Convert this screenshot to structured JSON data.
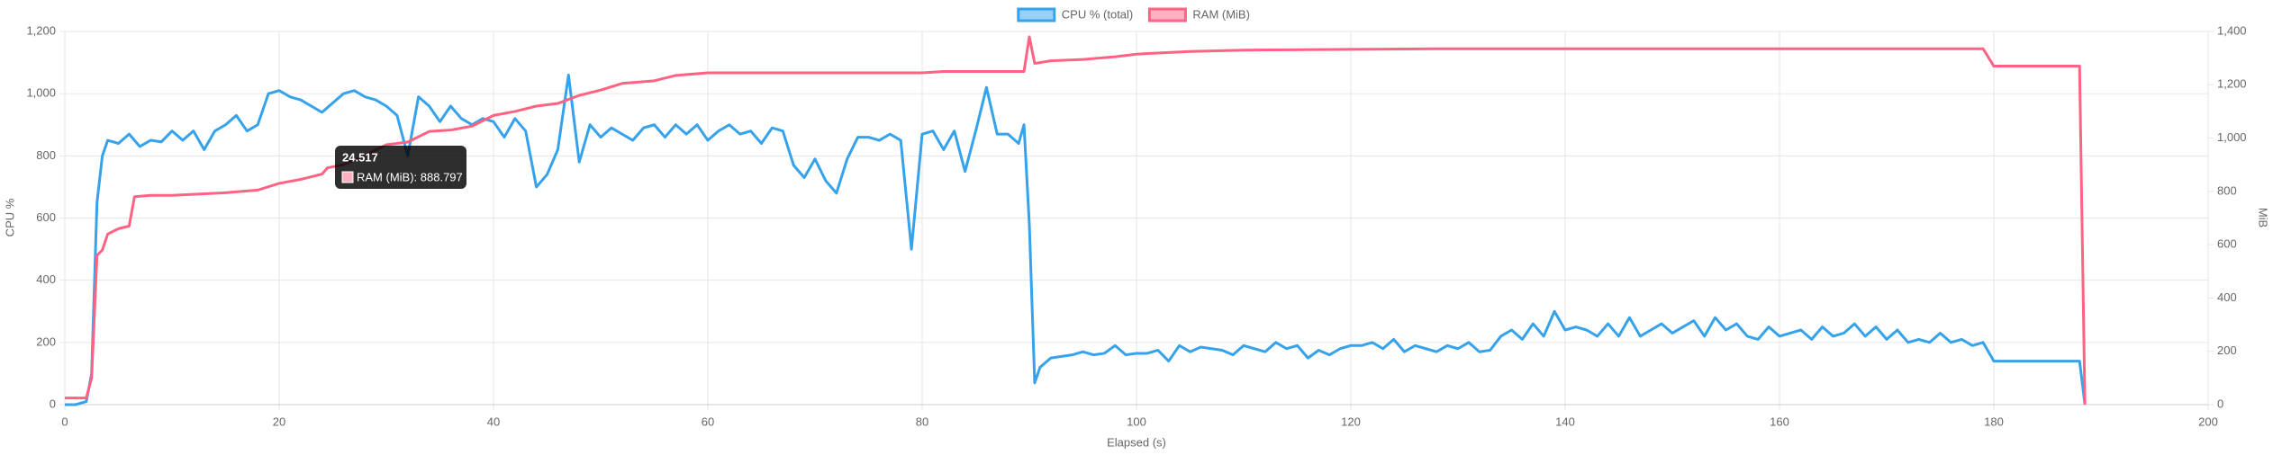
{
  "chart_data": {
    "type": "line",
    "x_label": "Elapsed (s)",
    "y_label": "CPU %",
    "y2_label": "MiB",
    "legend": "top",
    "grid": true,
    "xlim": [
      0,
      200
    ],
    "xticks": [
      0,
      20,
      40,
      60,
      80,
      100,
      120,
      140,
      160,
      180,
      200
    ],
    "ylim": [
      0,
      1200
    ],
    "yticks": [
      0,
      200,
      400,
      600,
      800,
      {
        "value": 1000,
        "label": "1,000"
      },
      {
        "value": 1200,
        "label": "1,200"
      }
    ],
    "y2lim": [
      0,
      1400
    ],
    "y2ticks": [
      0,
      200,
      400,
      600,
      800,
      {
        "value": 1000,
        "label": "1,000"
      },
      {
        "value": 1200,
        "label": "1,200"
      },
      {
        "value": 1400,
        "label": "1,400"
      }
    ],
    "tooltip": {
      "title": "24.517",
      "label": "RAM (MiB): 888.797"
    },
    "series": [
      {
        "name": "CPU % (total)",
        "color": "#36a2eb",
        "fill": "#9ad0f5",
        "x": [
          0,
          1,
          2,
          2.5,
          3,
          3.5,
          4,
          5,
          6,
          7,
          8,
          9,
          10,
          11,
          12,
          13,
          14,
          15,
          16,
          17,
          18,
          19,
          20,
          21,
          22,
          23,
          24,
          25,
          26,
          27,
          28,
          29,
          30,
          31,
          32,
          33,
          34,
          35,
          36,
          37,
          38,
          39,
          40,
          41,
          42,
          43,
          44,
          45,
          46,
          47,
          48,
          49,
          50,
          51,
          52,
          53,
          54,
          55,
          56,
          57,
          58,
          59,
          60,
          61,
          62,
          63,
          64,
          65,
          66,
          67,
          68,
          69,
          70,
          71,
          72,
          73,
          74,
          75,
          76,
          77,
          78,
          79,
          80,
          81,
          82,
          83,
          84,
          85,
          86,
          87,
          88,
          89,
          89.5,
          90,
          90.5,
          91,
          92,
          93,
          94,
          95,
          96,
          97,
          98,
          99,
          100,
          101,
          102,
          103,
          104,
          105,
          106,
          107,
          108,
          109,
          110,
          111,
          112,
          113,
          114,
          115,
          116,
          117,
          118,
          119,
          120,
          121,
          122,
          123,
          124,
          125,
          126,
          127,
          128,
          129,
          130,
          131,
          132,
          133,
          134,
          135,
          136,
          137,
          138,
          139,
          140,
          141,
          142,
          143,
          144,
          145,
          146,
          147,
          148,
          149,
          150,
          151,
          152,
          153,
          154,
          155,
          156,
          157,
          158,
          159,
          160,
          161,
          162,
          163,
          164,
          165,
          166,
          167,
          168,
          169,
          170,
          171,
          172,
          173,
          174,
          175,
          176,
          177,
          178,
          179,
          180,
          181,
          182,
          183,
          184,
          185,
          186,
          187,
          188,
          188.5
        ],
        "values": [
          0,
          0,
          10,
          100,
          650,
          800,
          850,
          840,
          870,
          830,
          850,
          845,
          880,
          850,
          880,
          820,
          880,
          900,
          930,
          880,
          900,
          1000,
          1010,
          990,
          980,
          960,
          940,
          970,
          1000,
          1010,
          990,
          980,
          960,
          930,
          800,
          990,
          960,
          910,
          960,
          920,
          900,
          920,
          910,
          860,
          920,
          880,
          700,
          740,
          820,
          1060,
          780,
          900,
          860,
          890,
          870,
          850,
          890,
          900,
          860,
          900,
          870,
          900,
          850,
          880,
          900,
          870,
          880,
          840,
          890,
          880,
          770,
          730,
          790,
          720,
          680,
          790,
          860,
          860,
          850,
          870,
          850,
          500,
          870,
          880,
          820,
          880,
          750,
          880,
          1020,
          870,
          870,
          840,
          900,
          580,
          70,
          120,
          150,
          155,
          160,
          170,
          160,
          165,
          190,
          160,
          165,
          165,
          175,
          140,
          190,
          170,
          185,
          180,
          175,
          160,
          190,
          180,
          170,
          200,
          180,
          190,
          150,
          175,
          160,
          180,
          190,
          190,
          200,
          180,
          210,
          170,
          190,
          180,
          170,
          190,
          180,
          200,
          170,
          175,
          220,
          240,
          210,
          260,
          220,
          300,
          240,
          250,
          240,
          220,
          260,
          220,
          280,
          220,
          240,
          260,
          230,
          250,
          270,
          220,
          280,
          240,
          260,
          220,
          210,
          250,
          220,
          230,
          240,
          210,
          250,
          220,
          230,
          260,
          220,
          250,
          210,
          240,
          200,
          210,
          200,
          230,
          200,
          210,
          190,
          200,
          140,
          140,
          140,
          140,
          140,
          140,
          140,
          140,
          140,
          0
        ]
      },
      {
        "name": "RAM (MiB)",
        "color": "#ff6384",
        "fill": "#ffb1c1",
        "axis": "y2",
        "x": [
          0,
          2,
          2.5,
          3,
          3.5,
          4,
          5,
          6,
          6.5,
          8,
          10,
          15,
          18,
          20,
          22,
          24,
          24.517,
          26,
          28,
          30,
          32,
          34,
          36,
          38,
          40,
          42,
          44,
          46,
          48,
          50,
          52,
          55,
          57,
          60,
          70,
          80,
          82,
          89,
          89.5,
          90,
          90.5,
          92,
          95,
          98,
          100,
          105,
          110,
          120,
          128,
          140,
          179,
          180,
          188,
          188.5
        ],
        "values": [
          25,
          25,
          100,
          560,
          580,
          640,
          660,
          670,
          780,
          785,
          785,
          795,
          805,
          830,
          845,
          865,
          888.797,
          900,
          935,
          975,
          985,
          1025,
          1030,
          1045,
          1085,
          1100,
          1120,
          1130,
          1160,
          1180,
          1205,
          1215,
          1235,
          1245,
          1245,
          1245,
          1250,
          1250,
          1250,
          1380,
          1280,
          1290,
          1295,
          1305,
          1315,
          1325,
          1330,
          1333,
          1335,
          1335,
          1335,
          1270,
          1270,
          0
        ]
      }
    ]
  }
}
